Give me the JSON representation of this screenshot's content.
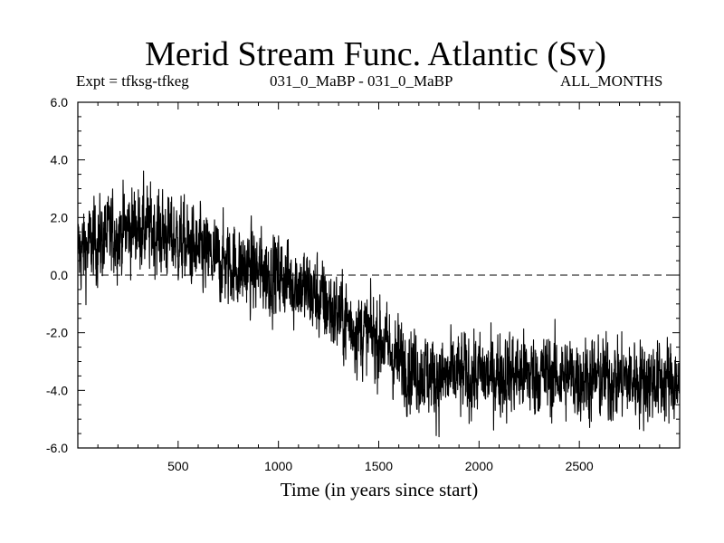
{
  "chart_data": {
    "type": "line",
    "title": "Merid Stream Func. Atlantic (Sv)",
    "subtitle_left": "Expt = tfksg-tfkeg",
    "subtitle_center": "031_0_MaBP - 031_0_MaBP",
    "subtitle_right": "ALL_MONTHS",
    "xlabel": "Time (in years since start)",
    "ylabel": "",
    "xlim": [
      0,
      3000
    ],
    "ylim": [
      -6.0,
      6.0
    ],
    "x_ticks": [
      500,
      1000,
      1500,
      2000,
      2500
    ],
    "x_tick_labels": [
      "500",
      "1000",
      "1500",
      "2000",
      "2500"
    ],
    "y_ticks": [
      -6.0,
      -4.0,
      -2.0,
      0.0,
      2.0,
      4.0,
      6.0
    ],
    "y_tick_labels": [
      "-6.0",
      "-4.0",
      "-2.0",
      "0.0",
      "2.0",
      "4.0",
      "6.0"
    ],
    "reference_line": {
      "y": 0.0,
      "style": "dashed"
    },
    "series": [
      {
        "name": "Merid Stream Func. Atlantic",
        "color": "#000000",
        "trend_x": [
          0,
          100,
          200,
          300,
          400,
          500,
          600,
          700,
          800,
          900,
          1000,
          1100,
          1200,
          1300,
          1400,
          1500,
          1600,
          1700,
          1800,
          1900,
          2000,
          2200,
          2400,
          2600,
          2800,
          3000
        ],
        "trend_y": [
          0.8,
          1.2,
          1.5,
          1.7,
          1.5,
          1.2,
          0.8,
          0.5,
          0.3,
          0.1,
          0.0,
          -0.3,
          -0.8,
          -1.4,
          -1.9,
          -2.2,
          -3.0,
          -3.3,
          -3.6,
          -3.5,
          -3.5,
          -3.4,
          -3.5,
          -3.6,
          -3.6,
          -3.7
        ],
        "noise_amplitude": 0.9,
        "n_points": 3000
      }
    ]
  }
}
